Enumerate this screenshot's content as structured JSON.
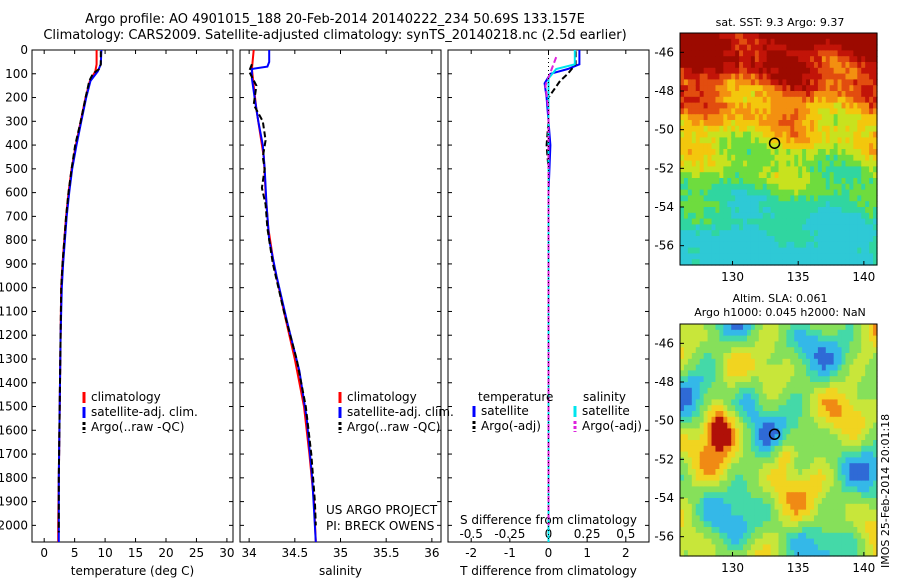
{
  "title_line1": "Argo profile: AO 4901015_188 20-Feb-2014 20140222_234 50.69S 133.157E",
  "title_line2": "Climatology: CARS2009. Satellite-adjusted climatology: synTS_20140218.nc (2.5d earlier)",
  "side_text": "IMOS 25-Feb-2014 20:01:18",
  "project_line1": "US ARGO PROJECT",
  "project_line2": "PI: BRECK OWENS",
  "colors": {
    "climatology": "#ff0000",
    "satellite_adj": "#0000ff",
    "argo": "#000000",
    "satellite_salinity": "#00e5ee",
    "argo_salinity_adj": "#dd22dd"
  },
  "chart_data": [
    {
      "type": "line",
      "xlabel": "temperature (deg C)",
      "ylabel": "",
      "xlim": [
        -2,
        31
      ],
      "ylim": [
        2070,
        0
      ],
      "x_ticks": [
        0,
        5,
        10,
        15,
        20,
        25,
        30
      ],
      "y_ticks": [
        0,
        100,
        200,
        300,
        400,
        500,
        600,
        700,
        800,
        900,
        1000,
        1100,
        1200,
        1300,
        1400,
        1500,
        1600,
        1700,
        1800,
        1900,
        2000
      ],
      "legend_position": "middle",
      "legend": [
        "climatology",
        "satellite-adj. clim.",
        "Argo(..raw -QC)"
      ],
      "series": [
        {
          "name": "climatology",
          "color": "#ff0000",
          "style": "solid",
          "points": [
            [
              8.6,
              0
            ],
            [
              8.6,
              60
            ],
            [
              8.4,
              90
            ],
            [
              7.5,
              130
            ],
            [
              6.8,
              200
            ],
            [
              6.0,
              300
            ],
            [
              5.2,
              400
            ],
            [
              4.5,
              500
            ],
            [
              4.0,
              600
            ],
            [
              3.6,
              700
            ],
            [
              3.3,
              800
            ],
            [
              3.0,
              900
            ],
            [
              2.8,
              1000
            ],
            [
              2.7,
              1200
            ],
            [
              2.6,
              1400
            ],
            [
              2.5,
              1600
            ],
            [
              2.4,
              1800
            ],
            [
              2.3,
              2000
            ],
            [
              2.3,
              2070
            ]
          ]
        },
        {
          "name": "satellite-adj. clim.",
          "color": "#0000ff",
          "style": "solid",
          "points": [
            [
              9.4,
              0
            ],
            [
              9.3,
              60
            ],
            [
              8.8,
              90
            ],
            [
              7.6,
              130
            ],
            [
              6.9,
              200
            ],
            [
              6.1,
              300
            ],
            [
              5.3,
              400
            ],
            [
              4.6,
              500
            ],
            [
              4.1,
              600
            ],
            [
              3.7,
              700
            ],
            [
              3.4,
              800
            ],
            [
              3.1,
              900
            ],
            [
              2.9,
              1000
            ],
            [
              2.7,
              1200
            ],
            [
              2.6,
              1400
            ],
            [
              2.5,
              1600
            ],
            [
              2.4,
              1800
            ],
            [
              2.4,
              2000
            ],
            [
              2.4,
              2070
            ]
          ]
        },
        {
          "name": "Argo(..raw -QC)",
          "color": "#000000",
          "style": "dashed",
          "points": [
            [
              9.3,
              5
            ],
            [
              9.3,
              60
            ],
            [
              9.0,
              80
            ],
            [
              8.0,
              100
            ],
            [
              7.4,
              130
            ],
            [
              6.8,
              200
            ],
            [
              6.0,
              300
            ],
            [
              5.1,
              400
            ],
            [
              4.5,
              500
            ],
            [
              4.0,
              600
            ],
            [
              3.6,
              700
            ],
            [
              3.3,
              800
            ],
            [
              3.0,
              900
            ],
            [
              2.8,
              1000
            ],
            [
              2.7,
              1200
            ],
            [
              2.6,
              1400
            ],
            [
              2.5,
              1600
            ],
            [
              2.4,
              1800
            ],
            [
              2.4,
              2000
            ],
            [
              2.4,
              2030
            ]
          ]
        }
      ]
    },
    {
      "type": "line",
      "xlabel": "salinity",
      "xlim": [
        33.9,
        36.1
      ],
      "ylim": [
        2070,
        0
      ],
      "x_ticks": [
        34,
        34.5,
        35,
        35.5,
        36
      ],
      "x_tick_labels": [
        "34",
        "34.5",
        "35",
        "35.5",
        "36"
      ],
      "legend_position": "middle",
      "legend": [
        "climatology",
        "satellite-adj. clim.",
        "Argo(..raw -QC)"
      ],
      "series": [
        {
          "name": "climatology",
          "color": "#ff0000",
          "style": "solid",
          "points": [
            [
              34.05,
              0
            ],
            [
              34.03,
              80
            ],
            [
              34.05,
              150
            ],
            [
              34.08,
              250
            ],
            [
              34.12,
              350
            ],
            [
              34.16,
              450
            ],
            [
              34.18,
              600
            ],
            [
              34.21,
              750
            ],
            [
              34.27,
              900
            ],
            [
              34.38,
              1100
            ],
            [
              34.5,
              1300
            ],
            [
              34.6,
              1500
            ],
            [
              34.66,
              1700
            ],
            [
              34.71,
              1900
            ],
            [
              34.73,
              2070
            ]
          ]
        },
        {
          "name": "satellite-adj. clim.",
          "color": "#0000ff",
          "style": "solid",
          "points": [
            [
              34.22,
              0
            ],
            [
              34.22,
              50
            ],
            [
              34.2,
              70
            ],
            [
              34.03,
              80
            ],
            [
              34.03,
              120
            ],
            [
              34.06,
              200
            ],
            [
              34.1,
              300
            ],
            [
              34.15,
              400
            ],
            [
              34.17,
              500
            ],
            [
              34.19,
              650
            ],
            [
              34.22,
              800
            ],
            [
              34.3,
              950
            ],
            [
              34.42,
              1150
            ],
            [
              34.55,
              1350
            ],
            [
              34.63,
              1550
            ],
            [
              34.69,
              1800
            ],
            [
              34.73,
              2070
            ]
          ]
        },
        {
          "name": "Argo(..raw -QC)",
          "color": "#000000",
          "style": "dashed",
          "points": [
            [
              34.03,
              60
            ],
            [
              34.0,
              90
            ],
            [
              34.08,
              150
            ],
            [
              34.05,
              230
            ],
            [
              34.15,
              300
            ],
            [
              34.18,
              380
            ],
            [
              34.15,
              450
            ],
            [
              34.17,
              500
            ],
            [
              34.14,
              580
            ],
            [
              34.18,
              650
            ],
            [
              34.2,
              750
            ],
            [
              34.26,
              900
            ],
            [
              34.38,
              1100
            ],
            [
              34.52,
              1300
            ],
            [
              34.62,
              1500
            ],
            [
              34.68,
              1700
            ],
            [
              34.72,
              1900
            ],
            [
              34.73,
              2000
            ]
          ]
        }
      ]
    },
    {
      "type": "line",
      "xlabel": "T difference from climatology",
      "top_axis_label": "S difference from climatology",
      "xlim": [
        -2.6,
        2.6
      ],
      "ylim": [
        2070,
        0
      ],
      "x_ticks": [
        -2,
        -1,
        0,
        1,
        2
      ],
      "x_tick_labels": [
        "-2",
        "-1",
        "0",
        "1",
        "2"
      ],
      "s_ticks": [
        -0.5,
        -0.25,
        0,
        0.25,
        0.5
      ],
      "s_tick_labels": [
        "-0.5",
        "-0.25",
        "0",
        "0.25",
        "0.5"
      ],
      "legend_position": "middle",
      "legend_temperature_header": "temperature",
      "legend_salinity_header": "salinity",
      "legend": [
        "satellite",
        "Argo(-adj)",
        "satellite",
        "Argo(-adj)"
      ],
      "series": [
        {
          "name": "temperature satellite",
          "color": "#0000ff",
          "style": "solid",
          "units": "T",
          "points": [
            [
              0.8,
              0
            ],
            [
              0.8,
              60
            ],
            [
              0.5,
              80
            ],
            [
              0.05,
              100
            ],
            [
              -0.1,
              140
            ],
            [
              -0.05,
              200
            ],
            [
              0.0,
              300
            ],
            [
              0.05,
              400
            ],
            [
              0.0,
              600
            ],
            [
              0.0,
              800
            ],
            [
              0.0,
              1000
            ],
            [
              0.0,
              2070
            ]
          ]
        },
        {
          "name": "temperature Argo(-adj)",
          "color": "#000000",
          "style": "dashed",
          "units": "T",
          "points": [
            [
              0.7,
              5
            ],
            [
              0.7,
              60
            ],
            [
              0.6,
              80
            ],
            [
              0.5,
              100
            ],
            [
              0.3,
              130
            ],
            [
              0.0,
              200
            ],
            [
              0.0,
              300
            ],
            [
              -0.05,
              400
            ],
            [
              0.0,
              500
            ],
            [
              0.0,
              700
            ],
            [
              0.0,
              1000
            ],
            [
              0.0,
              2030
            ]
          ]
        },
        {
          "name": "salinity satellite",
          "color": "#00e5ee",
          "style": "solid",
          "units": "S",
          "points": [
            [
              0.17,
              0
            ],
            [
              0.17,
              60
            ],
            [
              0.05,
              80
            ],
            [
              0.0,
              120
            ],
            [
              0.0,
              300
            ],
            [
              0.0,
              600
            ],
            [
              0.0,
              1000
            ],
            [
              0.0,
              2070
            ]
          ]
        },
        {
          "name": "salinity Argo(-adj)",
          "color": "#dd22dd",
          "style": "dashed",
          "units": "S",
          "points": [
            [
              0.05,
              30
            ],
            [
              -0.02,
              150
            ],
            [
              0.0,
              250
            ],
            [
              0.0,
              400
            ],
            [
              0.0,
              700
            ],
            [
              0.0,
              1000
            ],
            [
              0.0,
              2000
            ]
          ]
        }
      ]
    },
    {
      "type": "heatmap",
      "title": "sat. SST: 9.3 Argo: 9.37",
      "xlim": [
        126,
        141
      ],
      "ylim": [
        -57,
        -45
      ],
      "x_ticks": [
        130,
        135,
        140
      ],
      "y_ticks": [
        -46,
        -48,
        -50,
        -52,
        -54,
        -56
      ],
      "marker": [
        133.2,
        -50.7
      ]
    },
    {
      "type": "heatmap",
      "title_line1": "Altim. SLA: 0.061",
      "title_line2": "Argo h1000: 0.045 h2000: NaN",
      "xlim": [
        126,
        141
      ],
      "ylim": [
        -57,
        -45
      ],
      "x_ticks": [
        130,
        135,
        140
      ],
      "y_ticks": [
        -46,
        -48,
        -50,
        -52,
        -54,
        -56
      ],
      "marker": [
        133.2,
        -50.7
      ]
    }
  ]
}
